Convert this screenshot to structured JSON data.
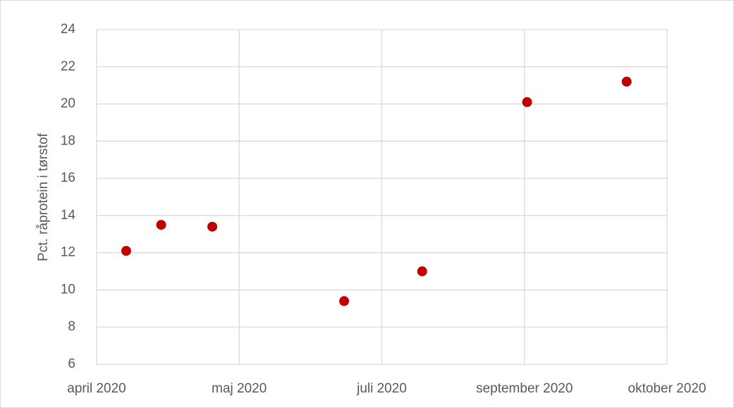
{
  "chart_data": {
    "type": "scatter",
    "y_label": "Pct. råprotein i tørstof",
    "x": [
      43933,
      43946,
      43965,
      44014,
      44043,
      44082,
      44119
    ],
    "values": [
      12.1,
      13.5,
      13.4,
      9.4,
      11.0,
      20.1,
      21.2
    ],
    "color": "#c00000",
    "xlim": [
      43922,
      44134
    ],
    "xticks": [
      {
        "value": 43922,
        "label": "april 2020"
      },
      {
        "value": 43975,
        "label": "maj 2020"
      },
      {
        "value": 44028,
        "label": "juli 2020"
      },
      {
        "value": 44081,
        "label": "september 2020"
      },
      {
        "value": 44134,
        "label": "oktober 2020"
      }
    ],
    "ylim": [
      6,
      24
    ],
    "yticks": [
      6,
      8,
      10,
      12,
      14,
      16,
      18,
      20,
      22,
      24
    ],
    "grid": true
  }
}
